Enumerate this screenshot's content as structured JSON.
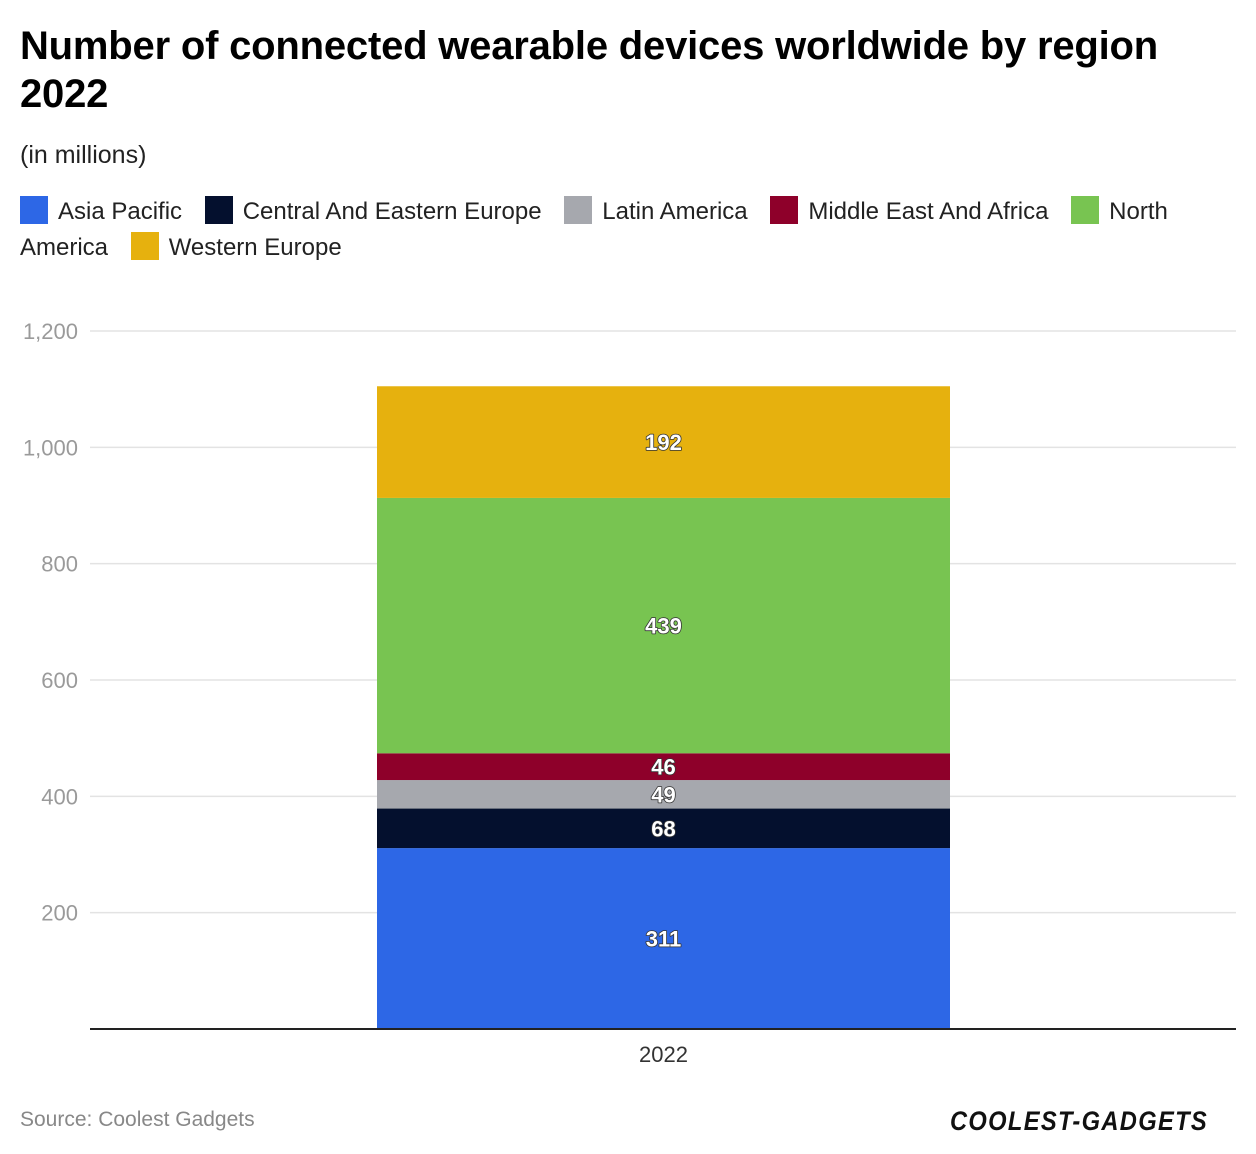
{
  "chart_data": {
    "type": "bar",
    "stacked": true,
    "title": "Number of connected wearable devices worldwide by region 2022",
    "subtitle": "(in millions)",
    "categories": [
      "2022"
    ],
    "series": [
      {
        "name": "Asia Pacific",
        "values": [
          311
        ],
        "color": "#2D67E6"
      },
      {
        "name": "Central And Eastern Europe",
        "values": [
          68
        ],
        "color": "#04102E"
      },
      {
        "name": "Latin America",
        "values": [
          49
        ],
        "color": "#A6A8AE"
      },
      {
        "name": "Middle East And Africa",
        "values": [
          46
        ],
        "color": "#8E002A"
      },
      {
        "name": "North America",
        "values": [
          439
        ],
        "color": "#78C451"
      },
      {
        "name": "Western Europe",
        "values": [
          192
        ],
        "color": "#E6B10E"
      }
    ],
    "y_ticks": [
      200,
      400,
      600,
      800,
      1000,
      1200
    ],
    "y_tick_labels": [
      "200",
      "400",
      "600",
      "800",
      "1,000",
      "1,200"
    ],
    "ylim": [
      0,
      1200
    ],
    "grid": true,
    "legend_position": "top-left",
    "xlabel": "",
    "ylabel": ""
  },
  "source": "Source: Coolest Gadgets",
  "brand": "COOLEST-GADGETS"
}
